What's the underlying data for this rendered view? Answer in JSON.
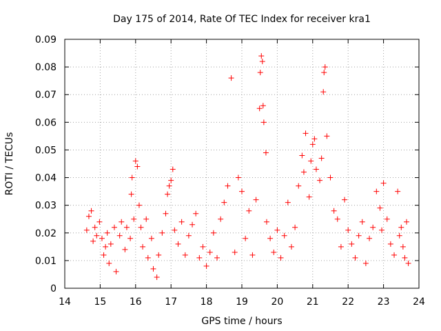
{
  "chart_data": {
    "type": "scatter",
    "title": "Day 175 of 2014, Rate Of TEC Index for receiver kra1",
    "xlabel": "GPS time / hours",
    "ylabel": "ROTI / TECUs",
    "xlim": [
      14,
      24
    ],
    "ylim": [
      0,
      0.09
    ],
    "x_ticks": [
      "14",
      "15",
      "16",
      "17",
      "18",
      "19",
      "20",
      "21",
      "22",
      "23",
      "24"
    ],
    "y_ticks": [
      "0",
      "0.01",
      "0.02",
      "0.03",
      "0.04",
      "0.05",
      "0.06",
      "0.07",
      "0.08",
      "0.09"
    ],
    "grid": true,
    "marker": "+",
    "marker_color": "#ff0000",
    "series": [
      {
        "name": "kra1",
        "x": [
          14.62,
          14.68,
          14.75,
          14.8,
          14.85,
          14.9,
          14.98,
          15.05,
          15.1,
          15.15,
          15.2,
          15.25,
          15.3,
          15.4,
          15.45,
          15.55,
          15.6,
          15.7,
          15.75,
          15.85,
          15.88,
          15.9,
          15.95,
          16.0,
          16.05,
          16.1,
          16.15,
          16.2,
          16.3,
          16.35,
          16.45,
          16.5,
          16.6,
          16.65,
          16.75,
          16.85,
          16.9,
          16.95,
          17.0,
          17.05,
          17.1,
          17.2,
          17.3,
          17.4,
          17.5,
          17.6,
          17.7,
          17.8,
          17.9,
          18.0,
          18.1,
          18.2,
          18.3,
          18.4,
          18.5,
          18.6,
          18.7,
          18.8,
          18.9,
          19.0,
          19.1,
          19.2,
          19.3,
          19.4,
          19.5,
          19.52,
          19.55,
          19.58,
          19.6,
          19.62,
          19.68,
          19.7,
          19.8,
          19.9,
          20.0,
          20.1,
          20.2,
          20.3,
          20.4,
          20.5,
          20.6,
          20.7,
          20.75,
          20.8,
          20.9,
          20.95,
          21.0,
          21.05,
          21.1,
          21.2,
          21.25,
          21.3,
          21.32,
          21.35,
          21.4,
          21.5,
          21.6,
          21.7,
          21.8,
          21.9,
          22.0,
          22.1,
          22.2,
          22.3,
          22.4,
          22.5,
          22.6,
          22.7,
          22.8,
          22.9,
          22.95,
          23.0,
          23.1,
          23.2,
          23.3,
          23.4,
          23.45,
          23.5,
          23.55,
          23.6,
          23.65,
          23.7
        ],
        "y": [
          0.021,
          0.026,
          0.028,
          0.017,
          0.022,
          0.019,
          0.024,
          0.018,
          0.012,
          0.015,
          0.02,
          0.009,
          0.016,
          0.022,
          0.006,
          0.019,
          0.024,
          0.014,
          0.022,
          0.018,
          0.034,
          0.04,
          0.025,
          0.046,
          0.044,
          0.03,
          0.022,
          0.015,
          0.025,
          0.011,
          0.018,
          0.007,
          0.004,
          0.012,
          0.02,
          0.027,
          0.034,
          0.037,
          0.039,
          0.043,
          0.021,
          0.016,
          0.024,
          0.012,
          0.019,
          0.023,
          0.027,
          0.011,
          0.015,
          0.008,
          0.013,
          0.02,
          0.011,
          0.025,
          0.031,
          0.037,
          0.076,
          0.013,
          0.04,
          0.035,
          0.018,
          0.028,
          0.012,
          0.032,
          0.065,
          0.078,
          0.084,
          0.082,
          0.066,
          0.06,
          0.049,
          0.024,
          0.018,
          0.013,
          0.021,
          0.011,
          0.019,
          0.031,
          0.015,
          0.022,
          0.037,
          0.048,
          0.042,
          0.056,
          0.033,
          0.046,
          0.052,
          0.054,
          0.043,
          0.039,
          0.047,
          0.071,
          0.078,
          0.08,
          0.055,
          0.04,
          0.028,
          0.025,
          0.015,
          0.032,
          0.021,
          0.016,
          0.011,
          0.019,
          0.024,
          0.009,
          0.018,
          0.022,
          0.035,
          0.029,
          0.021,
          0.038,
          0.025,
          0.016,
          0.012,
          0.035,
          0.019,
          0.022,
          0.015,
          0.011,
          0.024,
          0.009
        ]
      }
    ]
  }
}
